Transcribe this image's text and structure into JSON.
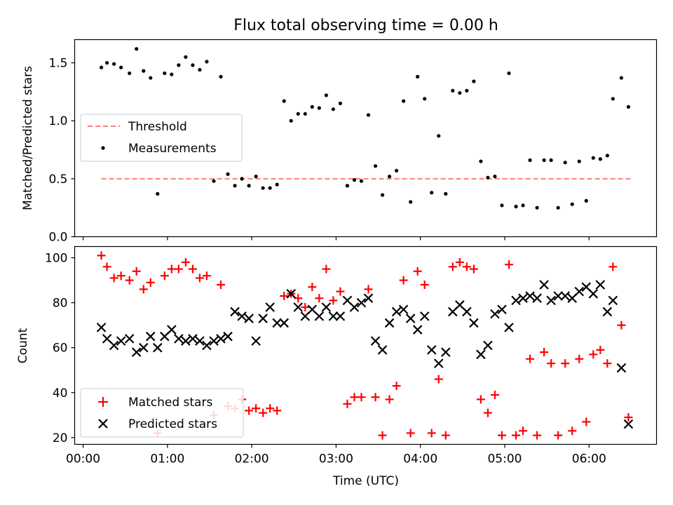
{
  "chart_data": [
    {
      "type": "scatter",
      "title": "Flux total observing time = 0.00 h",
      "xlabel": "",
      "ylabel": "Matched/Predicted stars",
      "ylim": [
        0.0,
        1.7
      ],
      "xlim_hours": [
        -0.1,
        6.8
      ],
      "yticks": [
        0.0,
        0.5,
        1.0,
        1.5
      ],
      "ytick_labels": [
        "0.0",
        "0.5",
        "1.0",
        "1.5"
      ],
      "legend_position": "center-left",
      "threshold": {
        "name": "Threshold",
        "y": 0.5,
        "x_start": "00:13",
        "x_end": "06:30",
        "color": "#ff7f7f",
        "style": "dashed"
      },
      "series": [
        {
          "name": "Measurements",
          "color": "#000000",
          "marker": "dot",
          "points": [
            [
              "00:13",
              1.46
            ],
            [
              "00:17",
              1.5
            ],
            [
              "00:22",
              1.49
            ],
            [
              "00:27",
              1.46
            ],
            [
              "00:33",
              1.41
            ],
            [
              "00:38",
              1.62
            ],
            [
              "00:43",
              1.43
            ],
            [
              "00:48",
              1.37
            ],
            [
              "00:53",
              0.37
            ],
            [
              "00:58",
              1.41
            ],
            [
              "01:03",
              1.4
            ],
            [
              "01:08",
              1.48
            ],
            [
              "01:13",
              1.55
            ],
            [
              "01:18",
              1.48
            ],
            [
              "01:23",
              1.44
            ],
            [
              "01:28",
              1.51
            ],
            [
              "01:33",
              0.48
            ],
            [
              "01:38",
              1.38
            ],
            [
              "01:43",
              0.54
            ],
            [
              "01:48",
              0.44
            ],
            [
              "01:53",
              0.5
            ],
            [
              "01:58",
              0.44
            ],
            [
              "02:03",
              0.52
            ],
            [
              "02:08",
              0.42
            ],
            [
              "02:13",
              0.42
            ],
            [
              "02:18",
              0.45
            ],
            [
              "02:23",
              1.17
            ],
            [
              "02:28",
              1.0
            ],
            [
              "02:33",
              1.06
            ],
            [
              "02:38",
              1.06
            ],
            [
              "02:43",
              1.12
            ],
            [
              "02:48",
              1.11
            ],
            [
              "02:53",
              1.22
            ],
            [
              "02:58",
              1.1
            ],
            [
              "03:03",
              1.15
            ],
            [
              "03:08",
              0.44
            ],
            [
              "03:13",
              0.49
            ],
            [
              "03:18",
              0.48
            ],
            [
              "03:23",
              1.05
            ],
            [
              "03:28",
              0.61
            ],
            [
              "03:33",
              0.36
            ],
            [
              "03:38",
              0.52
            ],
            [
              "03:43",
              0.57
            ],
            [
              "03:48",
              1.17
            ],
            [
              "03:53",
              0.3
            ],
            [
              "03:58",
              1.38
            ],
            [
              "04:03",
              1.19
            ],
            [
              "04:08",
              0.38
            ],
            [
              "04:13",
              0.87
            ],
            [
              "04:18",
              0.37
            ],
            [
              "04:23",
              1.26
            ],
            [
              "04:28",
              1.24
            ],
            [
              "04:33",
              1.26
            ],
            [
              "04:38",
              1.34
            ],
            [
              "04:43",
              0.65
            ],
            [
              "04:48",
              0.51
            ],
            [
              "04:53",
              0.52
            ],
            [
              "04:58",
              0.27
            ],
            [
              "05:03",
              1.41
            ],
            [
              "05:08",
              0.26
            ],
            [
              "05:13",
              0.27
            ],
            [
              "05:18",
              0.66
            ],
            [
              "05:23",
              0.25
            ],
            [
              "05:28",
              0.66
            ],
            [
              "05:33",
              0.66
            ],
            [
              "05:38",
              0.25
            ],
            [
              "05:43",
              0.64
            ],
            [
              "05:48",
              0.28
            ],
            [
              "05:53",
              0.65
            ],
            [
              "05:58",
              0.31
            ],
            [
              "06:03",
              0.68
            ],
            [
              "06:08",
              0.67
            ],
            [
              "06:13",
              0.7
            ],
            [
              "06:17",
              1.19
            ],
            [
              "06:23",
              1.37
            ],
            [
              "06:28",
              1.12
            ]
          ]
        }
      ]
    },
    {
      "type": "scatter",
      "title": "",
      "xlabel": "Time (UTC)",
      "ylabel": "Count",
      "ylim": [
        17,
        105
      ],
      "xlim_hours": [
        -0.1,
        6.8
      ],
      "yticks": [
        20,
        40,
        60,
        80,
        100
      ],
      "ytick_labels": [
        "20",
        "40",
        "60",
        "80",
        "100"
      ],
      "xticks": [
        "00:00",
        "01:00",
        "02:00",
        "03:00",
        "04:00",
        "05:00",
        "06:00"
      ],
      "legend_position": "lower-left",
      "series": [
        {
          "name": "Matched stars",
          "color": "#ff0000",
          "marker": "plus",
          "points": [
            [
              "00:13",
              101
            ],
            [
              "00:17",
              96
            ],
            [
              "00:22",
              91
            ],
            [
              "00:27",
              92
            ],
            [
              "00:33",
              90
            ],
            [
              "00:38",
              94
            ],
            [
              "00:43",
              86
            ],
            [
              "00:48",
              89
            ],
            [
              "00:53",
              22
            ],
            [
              "00:58",
              92
            ],
            [
              "01:03",
              95
            ],
            [
              "01:08",
              95
            ],
            [
              "01:13",
              98
            ],
            [
              "01:18",
              95
            ],
            [
              "01:23",
              91
            ],
            [
              "01:28",
              92
            ],
            [
              "01:33",
              30
            ],
            [
              "01:38",
              88
            ],
            [
              "01:43",
              34
            ],
            [
              "01:48",
              33
            ],
            [
              "01:53",
              37
            ],
            [
              "01:58",
              32
            ],
            [
              "02:03",
              33
            ],
            [
              "02:08",
              31
            ],
            [
              "02:13",
              33
            ],
            [
              "02:18",
              32
            ],
            [
              "02:23",
              83
            ],
            [
              "02:28",
              84
            ],
            [
              "02:33",
              82
            ],
            [
              "02:38",
              78
            ],
            [
              "02:43",
              87
            ],
            [
              "02:48",
              82
            ],
            [
              "02:53",
              95
            ],
            [
              "02:58",
              81
            ],
            [
              "03:03",
              85
            ],
            [
              "03:08",
              35
            ],
            [
              "03:13",
              38
            ],
            [
              "03:18",
              38
            ],
            [
              "03:23",
              86
            ],
            [
              "03:28",
              38
            ],
            [
              "03:33",
              21
            ],
            [
              "03:38",
              37
            ],
            [
              "03:43",
              43
            ],
            [
              "03:48",
              90
            ],
            [
              "03:53",
              22
            ],
            [
              "03:58",
              94
            ],
            [
              "04:03",
              88
            ],
            [
              "04:08",
              22
            ],
            [
              "04:13",
              46
            ],
            [
              "04:18",
              21
            ],
            [
              "04:23",
              96
            ],
            [
              "04:28",
              98
            ],
            [
              "04:33",
              96
            ],
            [
              "04:38",
              95
            ],
            [
              "04:43",
              37
            ],
            [
              "04:48",
              31
            ],
            [
              "04:53",
              39
            ],
            [
              "04:58",
              21
            ],
            [
              "05:03",
              97
            ],
            [
              "05:08",
              21
            ],
            [
              "05:13",
              23
            ],
            [
              "05:18",
              55
            ],
            [
              "05:23",
              21
            ],
            [
              "05:28",
              58
            ],
            [
              "05:33",
              53
            ],
            [
              "05:38",
              21
            ],
            [
              "05:43",
              53
            ],
            [
              "05:48",
              23
            ],
            [
              "05:53",
              55
            ],
            [
              "05:58",
              27
            ],
            [
              "06:03",
              57
            ],
            [
              "06:08",
              59
            ],
            [
              "06:13",
              53
            ],
            [
              "06:17",
              96
            ],
            [
              "06:23",
              70
            ],
            [
              "06:28",
              29
            ]
          ]
        },
        {
          "name": "Predicted stars",
          "color": "#000000",
          "marker": "x",
          "points": [
            [
              "00:13",
              69
            ],
            [
              "00:17",
              64
            ],
            [
              "00:22",
              61
            ],
            [
              "00:27",
              63
            ],
            [
              "00:33",
              64
            ],
            [
              "00:38",
              58
            ],
            [
              "00:43",
              60
            ],
            [
              "00:48",
              65
            ],
            [
              "00:53",
              60
            ],
            [
              "00:58",
              65
            ],
            [
              "01:03",
              68
            ],
            [
              "01:08",
              64
            ],
            [
              "01:13",
              63
            ],
            [
              "01:18",
              64
            ],
            [
              "01:23",
              63
            ],
            [
              "01:28",
              61
            ],
            [
              "01:33",
              63
            ],
            [
              "01:38",
              64
            ],
            [
              "01:43",
              65
            ],
            [
              "01:48",
              76
            ],
            [
              "01:53",
              74
            ],
            [
              "01:58",
              73
            ],
            [
              "02:03",
              63
            ],
            [
              "02:08",
              73
            ],
            [
              "02:13",
              78
            ],
            [
              "02:18",
              71
            ],
            [
              "02:23",
              71
            ],
            [
              "02:28",
              84
            ],
            [
              "02:33",
              78
            ],
            [
              "02:38",
              74
            ],
            [
              "02:43",
              77
            ],
            [
              "02:48",
              74
            ],
            [
              "02:53",
              78
            ],
            [
              "02:58",
              74
            ],
            [
              "03:03",
              74
            ],
            [
              "03:08",
              81
            ],
            [
              "03:13",
              78
            ],
            [
              "03:18",
              80
            ],
            [
              "03:23",
              82
            ],
            [
              "03:28",
              63
            ],
            [
              "03:33",
              59
            ],
            [
              "03:38",
              71
            ],
            [
              "03:43",
              76
            ],
            [
              "03:48",
              77
            ],
            [
              "03:53",
              73
            ],
            [
              "03:58",
              68
            ],
            [
              "04:03",
              74
            ],
            [
              "04:08",
              59
            ],
            [
              "04:13",
              53
            ],
            [
              "04:18",
              58
            ],
            [
              "04:23",
              76
            ],
            [
              "04:28",
              79
            ],
            [
              "04:33",
              76
            ],
            [
              "04:38",
              71
            ],
            [
              "04:43",
              57
            ],
            [
              "04:48",
              61
            ],
            [
              "04:53",
              75
            ],
            [
              "04:58",
              77
            ],
            [
              "05:03",
              69
            ],
            [
              "05:08",
              81
            ],
            [
              "05:13",
              82
            ],
            [
              "05:18",
              83
            ],
            [
              "05:23",
              82
            ],
            [
              "05:28",
              88
            ],
            [
              "05:33",
              81
            ],
            [
              "05:38",
              83
            ],
            [
              "05:43",
              83
            ],
            [
              "05:48",
              82
            ],
            [
              "05:53",
              85
            ],
            [
              "05:58",
              87
            ],
            [
              "06:03",
              84
            ],
            [
              "06:08",
              88
            ],
            [
              "06:13",
              76
            ],
            [
              "06:17",
              81
            ],
            [
              "06:23",
              51
            ],
            [
              "06:28",
              26
            ]
          ]
        }
      ]
    }
  ]
}
